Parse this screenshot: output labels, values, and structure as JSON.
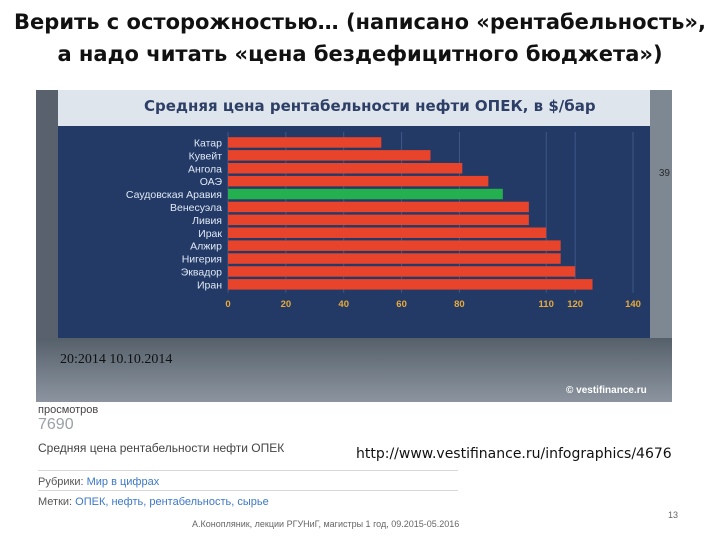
{
  "slide": {
    "title_line1": "Верить с осторожностью… (написано «рентабельность»,",
    "title_line2": "а надо читать «цена бездефицитного бюджета»)"
  },
  "chart_data": {
    "type": "bar",
    "orientation": "horizontal",
    "title": "Средняя цена рентабельности нефти ОПЕК, в $/бар",
    "categories": [
      "Катар",
      "Кувейт",
      "Ангола",
      "ОАЭ",
      "Саудовская Аравия",
      "Венесуэла",
      "Ливия",
      "Ирак",
      "Алжир",
      "Нигерия",
      "Эквадор",
      "Иран"
    ],
    "values": [
      53,
      70,
      81,
      90,
      95,
      104,
      104,
      110,
      115,
      115,
      120,
      126
    ],
    "highlight_index": 4,
    "xlim": [
      0,
      140
    ],
    "xticks": [
      0,
      20,
      40,
      60,
      80,
      110,
      120,
      140
    ],
    "colors": {
      "bar": "#e8432b",
      "highlight": "#25b04f"
    },
    "grid": true
  },
  "screen": {
    "side_number": "39",
    "date_caption": "20:2014 10.10.2014",
    "source": "© vestifinance.ru"
  },
  "webpage": {
    "views_label": "просмотров",
    "views_count": "7690",
    "heading": "Средняя цена рентабельности нефти ОПЕК",
    "url": "http://www.vestifinance.ru/infographics/4676",
    "rubric_label": "Рубрики:",
    "rubric_value": "Мир в цифрах",
    "tags_label": "Метки:",
    "tags_value": "ОПЕК, нефть, рентабельность, сырье"
  },
  "footer": {
    "text": "А.Конопляник, лекции РГУНиГ, магистры 1 год, 09.2015-05.2016",
    "page_number": "13"
  }
}
